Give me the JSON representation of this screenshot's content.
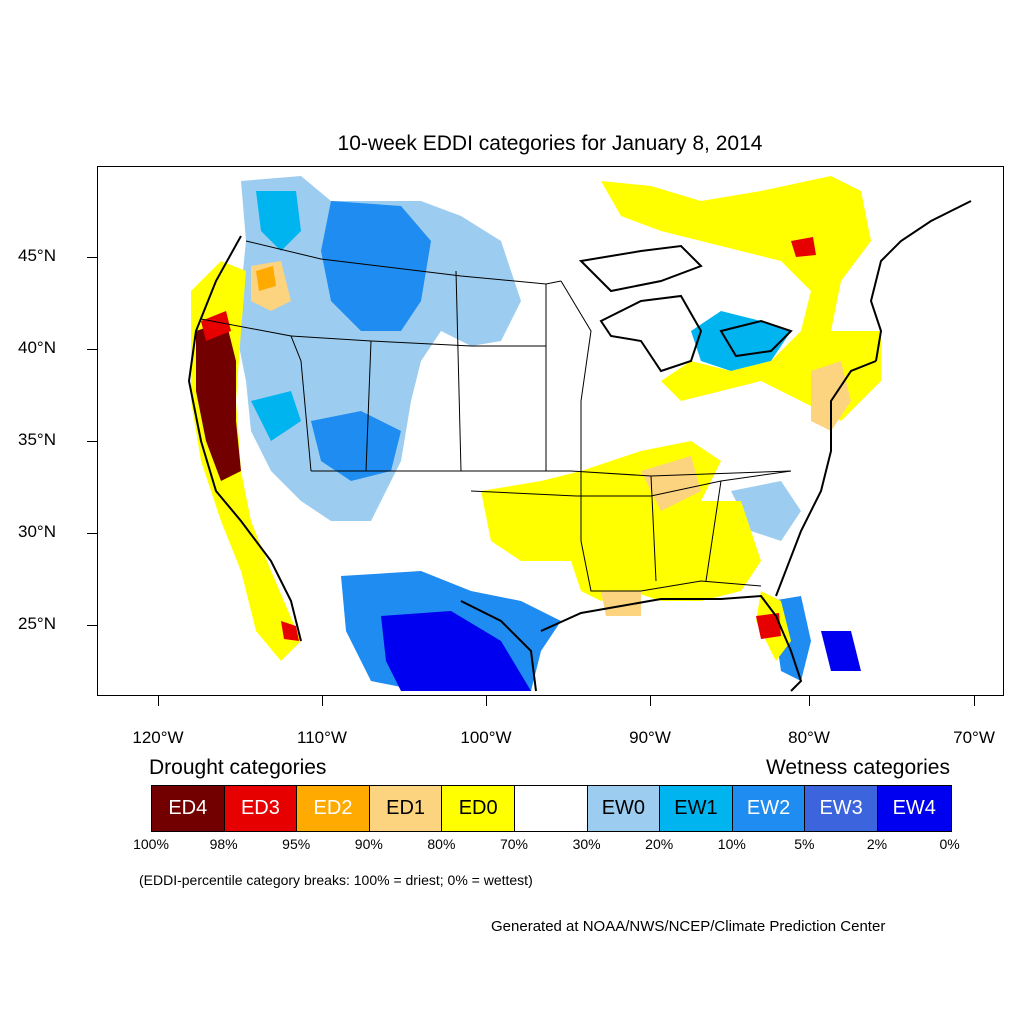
{
  "title": "10-week EDDI categories for January 8, 2014",
  "axes": {
    "lat_labels": [
      "45°N",
      "40°N",
      "35°N",
      "30°N",
      "25°N"
    ],
    "lon_labels": [
      "120°W",
      "110°W",
      "100°W",
      "90°W",
      "80°W",
      "70°W"
    ]
  },
  "legend": {
    "drought_heading": "Drought categories",
    "wetness_heading": "Wetness categories",
    "categories": [
      {
        "label": "ED4",
        "color": "#730000",
        "text_color": "#ffffff"
      },
      {
        "label": "ED3",
        "color": "#e60000",
        "text_color": "#ffffff"
      },
      {
        "label": "ED2",
        "color": "#ffaa00",
        "text_color": "#ffffff"
      },
      {
        "label": "ED1",
        "color": "#fcd37f",
        "text_color": "#000000"
      },
      {
        "label": "ED0",
        "color": "#ffff00",
        "text_color": "#000000"
      },
      {
        "label": "",
        "color": "#ffffff",
        "text_color": "#000000"
      },
      {
        "label": "EW0",
        "color": "#9ccdf0",
        "text_color": "#000000"
      },
      {
        "label": "EW1",
        "color": "#00b4f0",
        "text_color": "#000000"
      },
      {
        "label": "EW2",
        "color": "#1e8cf0",
        "text_color": "#ffffff"
      },
      {
        "label": "EW3",
        "color": "#3c64dc",
        "text_color": "#ffffff"
      },
      {
        "label": "EW4",
        "color": "#0000f0",
        "text_color": "#ffffff"
      }
    ],
    "percentiles": [
      "100%",
      "98%",
      "95%",
      "90%",
      "80%",
      "70%",
      "30%",
      "20%",
      "10%",
      "5%",
      "2%",
      "0%"
    ]
  },
  "note": "(EDDI-percentile category breaks: 100% = driest; 0% = wettest)",
  "credit": "Generated at NOAA/NWS/NCEP/Climate Prediction Center"
}
